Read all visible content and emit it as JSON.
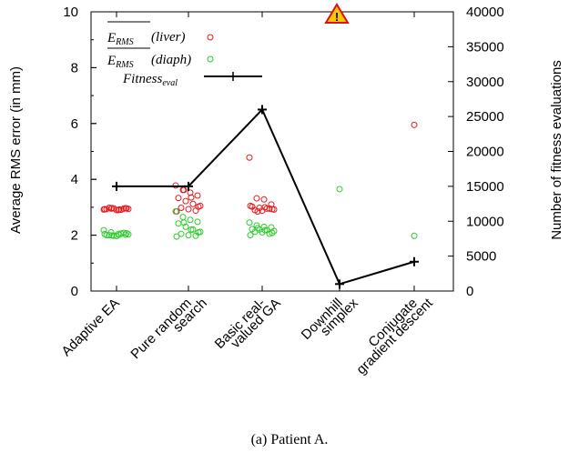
{
  "chart_data": {
    "type": "scatter",
    "caption": "(a) Patient A.",
    "ylabel": "Average RMS error (in mm)",
    "y2label": "Number of fitness evaluations",
    "ylim": [
      0,
      10
    ],
    "y2lim": [
      0,
      40000
    ],
    "yticks": [
      "0",
      "2",
      "4",
      "6",
      "8",
      "10"
    ],
    "y2ticks": [
      "0",
      "5000",
      "10000",
      "15000",
      "20000",
      "25000",
      "30000",
      "35000",
      "40000"
    ],
    "categories": [
      [
        "Adaptive EA"
      ],
      [
        "Pure random",
        "search"
      ],
      [
        "Basic real-",
        "valued GA"
      ],
      [
        "Downhill",
        "simplex"
      ],
      [
        "Conjugate",
        "gradient descent"
      ]
    ],
    "legend": {
      "placement": "top-left",
      "liver": "(liver)",
      "diaph": "(diaph)",
      "fitness": "Fitness",
      "fitness_sub": "eval",
      "symbol": "E",
      "symbol_sub": "RMS"
    },
    "warning_icon": "warning-triangle-icon",
    "colors": {
      "liver": "#e41a1c",
      "diaph": "#2ecc2e",
      "fitness": "#000000"
    },
    "series": [
      {
        "key": "liver",
        "axis": "left",
        "points": [
          [
            1,
            [
              2.92,
              2.95,
              2.9,
              2.97,
              2.93,
              2.96,
              2.91,
              2.94,
              2.98,
              2.9,
              2.95,
              2.93,
              2.97,
              2.92,
              2.96
            ]
          ],
          [
            2,
            [
              3.78,
              3.62,
              3.52,
              3.42,
              3.33,
              3.22,
              3.12,
              3.05,
              2.98,
              2.93,
              2.88,
              2.85,
              3.62,
              3.35,
              3.02
            ]
          ],
          [
            3,
            [
              4.78,
              3.32,
              3.28,
              3.1,
              3.02,
              2.98,
              2.95,
              2.92,
              2.9,
              2.88,
              2.95,
              3.05,
              2.85,
              3.0,
              2.93
            ]
          ],
          [
            5,
            [
              5.95
            ]
          ]
        ],
        "marker_points": [
          [
            4,
            10.0
          ]
        ]
      },
      {
        "key": "diaph",
        "axis": "left",
        "points": [
          [
            1,
            [
              2.18,
              2.1,
              2.05,
              2.02,
              2.0,
              1.98,
              2.06,
              2.03,
              2.0,
              1.97,
              2.08,
              2.04,
              1.99,
              2.01,
              2.07
            ]
          ],
          [
            2,
            [
              2.85,
              2.65,
              2.55,
              2.48,
              2.42,
              2.3,
              2.2,
              2.12,
              2.05,
              2.0,
              1.98,
              1.95,
              2.45,
              2.2,
              2.1
            ]
          ],
          [
            3,
            [
              2.45,
              2.35,
              2.3,
              2.28,
              2.22,
              2.2,
              2.18,
              2.15,
              2.12,
              2.1,
              2.05,
              2.0,
              2.25,
              2.18,
              2.08
            ]
          ],
          [
            4,
            [
              3.65
            ]
          ],
          [
            5,
            [
              1.98
            ]
          ]
        ]
      },
      {
        "key": "fitness",
        "axis": "right",
        "values": [
          15000,
          15000,
          26000,
          1000,
          4200
        ]
      }
    ]
  }
}
